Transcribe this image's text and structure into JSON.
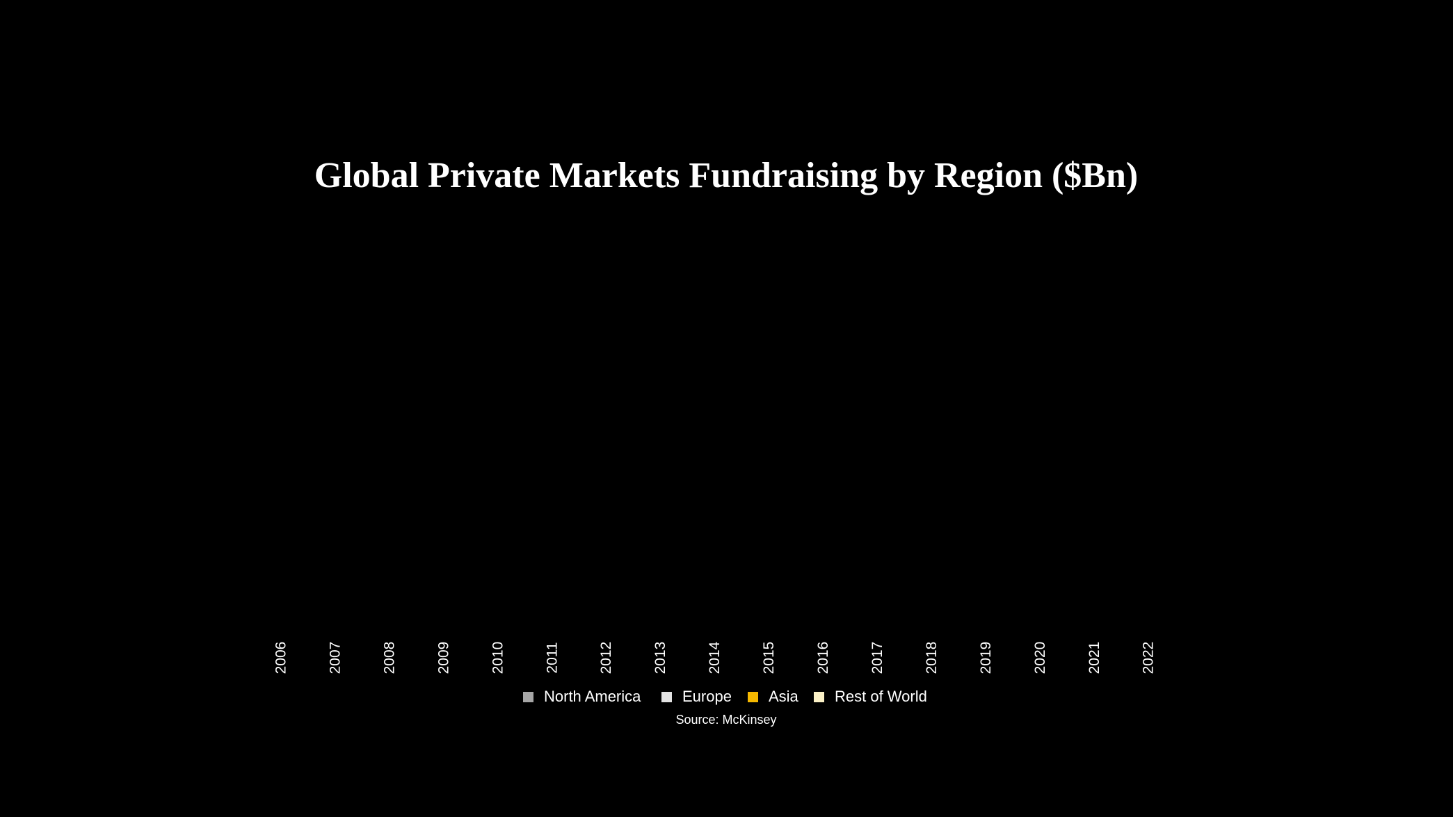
{
  "chart_data": {
    "type": "stacked_bar",
    "title": "Global Private Markets Fundraising by Region ($Bn)",
    "categories": [
      "2006",
      "2007",
      "2008",
      "2009",
      "2010",
      "2011",
      "2012",
      "2013",
      "2014",
      "2015",
      "2016",
      "2017",
      "2018",
      "2019",
      "2020",
      "2021",
      "2022"
    ],
    "series": [
      {
        "name": "North America",
        "color": "#a6a6a6",
        "values": [
          null,
          null,
          null,
          null,
          null,
          null,
          null,
          null,
          null,
          null,
          null,
          null,
          null,
          null,
          null,
          null,
          null
        ]
      },
      {
        "name": "Europe",
        "color": "#e3e3e3",
        "values": [
          null,
          null,
          null,
          null,
          null,
          null,
          null,
          null,
          null,
          null,
          null,
          null,
          null,
          null,
          null,
          null,
          null
        ]
      },
      {
        "name": "Asia",
        "color": "#f5b800",
        "values": [
          null,
          null,
          null,
          null,
          null,
          null,
          null,
          null,
          null,
          null,
          null,
          null,
          null,
          null,
          null,
          null,
          null
        ]
      },
      {
        "name": "Rest of World",
        "color": "#fbf1c6",
        "values": [
          null,
          null,
          null,
          null,
          null,
          null,
          null,
          null,
          null,
          null,
          null,
          null,
          null,
          null,
          null,
          null,
          null
        ]
      }
    ],
    "source": "Source: McKinsey"
  }
}
